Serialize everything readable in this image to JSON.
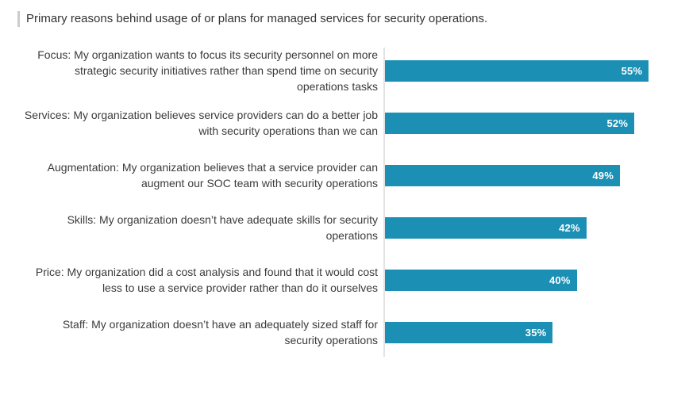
{
  "chart_data": {
    "type": "bar",
    "orientation": "horizontal",
    "title": "Primary reasons behind usage of or plans for managed services for security operations.",
    "categories": [
      "Focus: My organization wants to focus its security personnel on more strategic security initiatives rather than spend time on security operations tasks",
      "Services: My organization believes service providers can do a better job with security operations than we can",
      "Augmentation: My organization believes that a service provider can augment our SOC team with security operations",
      "Skills: My organization doesn’t have adequate skills for security operations",
      "Price: My organization did a cost analysis and found that it would cost less to use a service provider rather than do it ourselves",
      "Staff: My organization doesn’t have an adequately sized staff for security operations"
    ],
    "values": [
      55,
      52,
      49,
      42,
      40,
      35
    ],
    "value_labels": [
      "55%",
      "52%",
      "49%",
      "42%",
      "40%",
      "35%"
    ],
    "unit": "%",
    "xlim": [
      0,
      63.4
    ],
    "grid": false,
    "legend": "none",
    "bar_color": "#1b8fb4",
    "value_label_color": "#ffffff",
    "axis_line_color": "#e3e3e3",
    "category_label_color": "#3b3b3b",
    "title_color": "#333333",
    "title_accent_color": "#cccccc"
  }
}
